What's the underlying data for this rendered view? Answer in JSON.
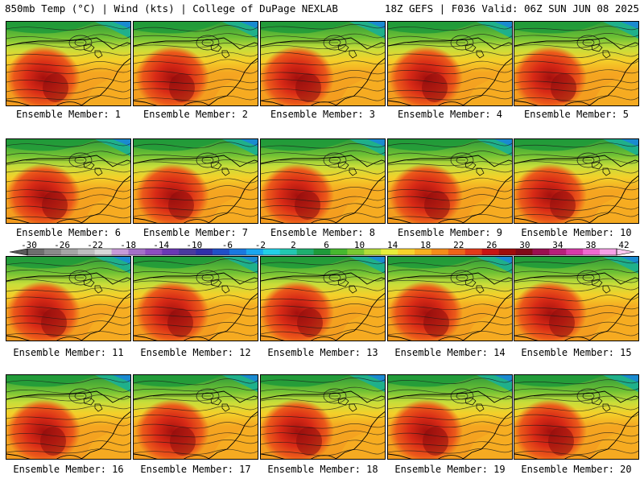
{
  "header": {
    "left": "850mb Temp (°C) | Wind (kts) | College of DuPage NEXLAB",
    "right": "18Z GEFS | F036 Valid: 06Z SUN JUN 08 2025"
  },
  "members": [
    {
      "caption": "Ensemble Member: 1"
    },
    {
      "caption": "Ensemble Member: 2"
    },
    {
      "caption": "Ensemble Member: 3"
    },
    {
      "caption": "Ensemble Member: 4"
    },
    {
      "caption": "Ensemble Member: 5"
    },
    {
      "caption": "Ensemble Member: 6"
    },
    {
      "caption": "Ensemble Member: 7"
    },
    {
      "caption": "Ensemble Member: 8"
    },
    {
      "caption": "Ensemble Member: 9"
    },
    {
      "caption": "Ensemble Member: 10"
    },
    {
      "caption": "Ensemble Member: 11"
    },
    {
      "caption": "Ensemble Member: 12"
    },
    {
      "caption": "Ensemble Member: 13"
    },
    {
      "caption": "Ensemble Member: 14"
    },
    {
      "caption": "Ensemble Member: 15"
    },
    {
      "caption": "Ensemble Member: 16"
    },
    {
      "caption": "Ensemble Member: 17"
    },
    {
      "caption": "Ensemble Member: 18"
    },
    {
      "caption": "Ensemble Member: 19"
    },
    {
      "caption": "Ensemble Member: 20"
    }
  ],
  "colorbar": {
    "labels": [
      "-30",
      "-26",
      "-22",
      "-18",
      "-14",
      "-10",
      "-6",
      "-2",
      "2",
      "6",
      "10",
      "14",
      "18",
      "22",
      "26",
      "30",
      "34",
      "38",
      "42"
    ],
    "colors": [
      "#6e6e6e",
      "#8a8a8a",
      "#a5a5a5",
      "#bebebe",
      "#d8d8d8",
      "#c89ad8",
      "#a470c8",
      "#8d4ec0",
      "#6a38b4",
      "#4a3a9e",
      "#3030a8",
      "#2050c8",
      "#1a78e0",
      "#19a7f0",
      "#22d0e8",
      "#22c8b0",
      "#1eb070",
      "#1e9a3a",
      "#46b82e",
      "#7ac832",
      "#b4dc3a",
      "#e8ee3a",
      "#f8d22a",
      "#f8b020",
      "#f48c1a",
      "#ee641a",
      "#e23a1a",
      "#c81414",
      "#a00c0c",
      "#800a18",
      "#9a1050",
      "#b8207a",
      "#d83aa8",
      "#f06ad0",
      "#f8a0e8"
    ]
  }
}
